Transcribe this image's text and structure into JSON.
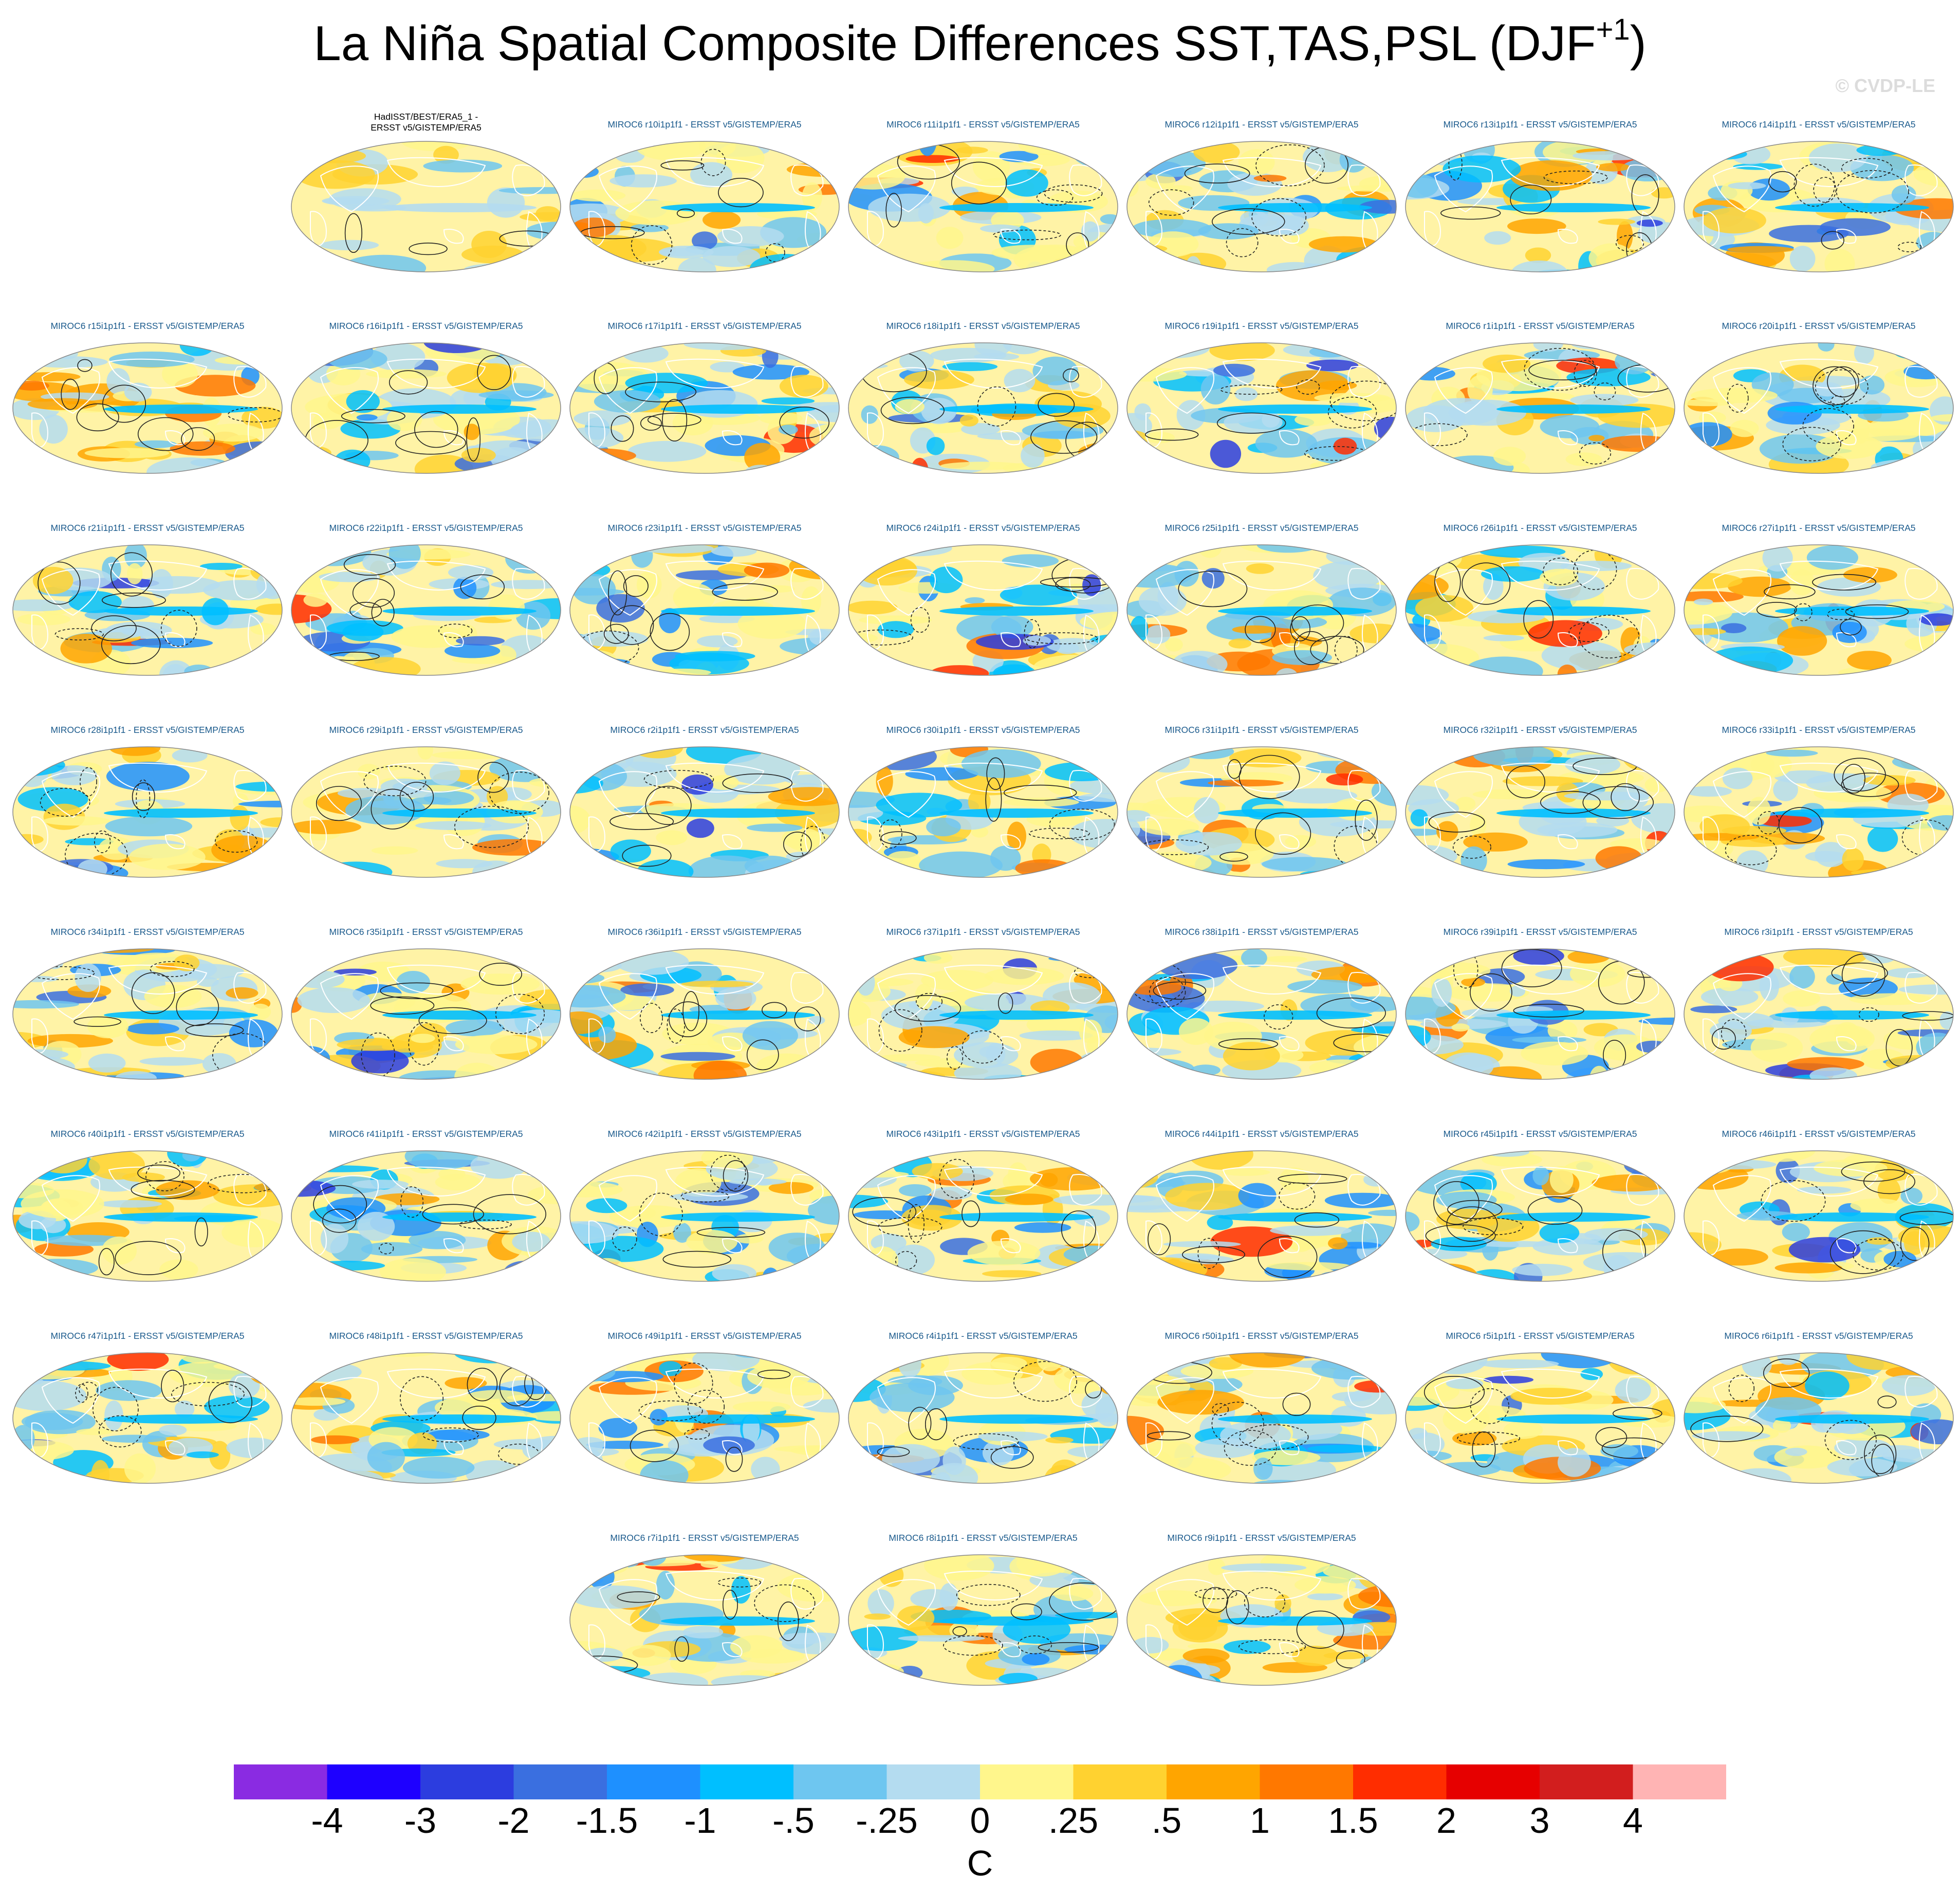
{
  "title": {
    "main": "La Niña Spatial Composite Differences SST,TAS,PSL (DJF",
    "superscript": "+1",
    "close": ")"
  },
  "copyright": "© CVDP-LE",
  "panels": [
    {
      "label": "HadISST/BEST/ERA5_1 -",
      "label2": "ERSST v5/GISTEMP/ERA5",
      "obs": true
    },
    {
      "label": "MIROC6 r10i1p1f1 - ERSST v5/GISTEMP/ERA5"
    },
    {
      "label": "MIROC6 r11i1p1f1 - ERSST v5/GISTEMP/ERA5"
    },
    {
      "label": "MIROC6 r12i1p1f1 - ERSST v5/GISTEMP/ERA5"
    },
    {
      "label": "MIROC6 r13i1p1f1 - ERSST v5/GISTEMP/ERA5"
    },
    {
      "label": "MIROC6 r14i1p1f1 - ERSST v5/GISTEMP/ERA5"
    },
    {
      "label": "MIROC6 r15i1p1f1 - ERSST v5/GISTEMP/ERA5"
    },
    {
      "label": "MIROC6 r16i1p1f1 - ERSST v5/GISTEMP/ERA5"
    },
    {
      "label": "MIROC6 r17i1p1f1 - ERSST v5/GISTEMP/ERA5"
    },
    {
      "label": "MIROC6 r18i1p1f1 - ERSST v5/GISTEMP/ERA5"
    },
    {
      "label": "MIROC6 r19i1p1f1 - ERSST v5/GISTEMP/ERA5"
    },
    {
      "label": "MIROC6 r1i1p1f1 - ERSST v5/GISTEMP/ERA5"
    },
    {
      "label": "MIROC6 r20i1p1f1 - ERSST v5/GISTEMP/ERA5"
    },
    {
      "label": "MIROC6 r21i1p1f1 - ERSST v5/GISTEMP/ERA5"
    },
    {
      "label": "MIROC6 r22i1p1f1 - ERSST v5/GISTEMP/ERA5"
    },
    {
      "label": "MIROC6 r23i1p1f1 - ERSST v5/GISTEMP/ERA5"
    },
    {
      "label": "MIROC6 r24i1p1f1 - ERSST v5/GISTEMP/ERA5"
    },
    {
      "label": "MIROC6 r25i1p1f1 - ERSST v5/GISTEMP/ERA5"
    },
    {
      "label": "MIROC6 r26i1p1f1 - ERSST v5/GISTEMP/ERA5"
    },
    {
      "label": "MIROC6 r27i1p1f1 - ERSST v5/GISTEMP/ERA5"
    },
    {
      "label": "MIROC6 r28i1p1f1 - ERSST v5/GISTEMP/ERA5"
    },
    {
      "label": "MIROC6 r29i1p1f1 - ERSST v5/GISTEMP/ERA5"
    },
    {
      "label": "MIROC6 r2i1p1f1 - ERSST v5/GISTEMP/ERA5"
    },
    {
      "label": "MIROC6 r30i1p1f1 - ERSST v5/GISTEMP/ERA5"
    },
    {
      "label": "MIROC6 r31i1p1f1 - ERSST v5/GISTEMP/ERA5"
    },
    {
      "label": "MIROC6 r32i1p1f1 - ERSST v5/GISTEMP/ERA5"
    },
    {
      "label": "MIROC6 r33i1p1f1 - ERSST v5/GISTEMP/ERA5"
    },
    {
      "label": "MIROC6 r34i1p1f1 - ERSST v5/GISTEMP/ERA5"
    },
    {
      "label": "MIROC6 r35i1p1f1 - ERSST v5/GISTEMP/ERA5"
    },
    {
      "label": "MIROC6 r36i1p1f1 - ERSST v5/GISTEMP/ERA5"
    },
    {
      "label": "MIROC6 r37i1p1f1 - ERSST v5/GISTEMP/ERA5"
    },
    {
      "label": "MIROC6 r38i1p1f1 - ERSST v5/GISTEMP/ERA5"
    },
    {
      "label": "MIROC6 r39i1p1f1 - ERSST v5/GISTEMP/ERA5"
    },
    {
      "label": "MIROC6 r3i1p1f1 - ERSST v5/GISTEMP/ERA5"
    },
    {
      "label": "MIROC6 r40i1p1f1 - ERSST v5/GISTEMP/ERA5"
    },
    {
      "label": "MIROC6 r41i1p1f1 - ERSST v5/GISTEMP/ERA5"
    },
    {
      "label": "MIROC6 r42i1p1f1 - ERSST v5/GISTEMP/ERA5"
    },
    {
      "label": "MIROC6 r43i1p1f1 - ERSST v5/GISTEMP/ERA5"
    },
    {
      "label": "MIROC6 r44i1p1f1 - ERSST v5/GISTEMP/ERA5"
    },
    {
      "label": "MIROC6 r45i1p1f1 - ERSST v5/GISTEMP/ERA5"
    },
    {
      "label": "MIROC6 r46i1p1f1 - ERSST v5/GISTEMP/ERA5"
    },
    {
      "label": "MIROC6 r47i1p1f1 - ERSST v5/GISTEMP/ERA5"
    },
    {
      "label": "MIROC6 r48i1p1f1 - ERSST v5/GISTEMP/ERA5"
    },
    {
      "label": "MIROC6 r49i1p1f1 - ERSST v5/GISTEMP/ERA5"
    },
    {
      "label": "MIROC6 r4i1p1f1 - ERSST v5/GISTEMP/ERA5"
    },
    {
      "label": "MIROC6 r50i1p1f1 - ERSST v5/GISTEMP/ERA5"
    },
    {
      "label": "MIROC6 r5i1p1f1 - ERSST v5/GISTEMP/ERA5"
    },
    {
      "label": "MIROC6 r6i1p1f1 - ERSST v5/GISTEMP/ERA5"
    },
    {
      "label": "MIROC6 r7i1p1f1 - ERSST v5/GISTEMP/ERA5"
    },
    {
      "label": "MIROC6 r8i1p1f1 - ERSST v5/GISTEMP/ERA5"
    },
    {
      "label": "MIROC6 r9i1p1f1 - ERSST v5/GISTEMP/ERA5"
    }
  ],
  "colorbar": {
    "colors": [
      "#8a2be2",
      "#1e00ff",
      "#2c3ddf",
      "#3a6fe0",
      "#1e90ff",
      "#00bfff",
      "#6ec6f0",
      "#b4dcf0",
      "#fff68c",
      "#ffd230",
      "#ffa500",
      "#ff7800",
      "#ff2d00",
      "#e60000",
      "#d21e1e",
      "#ffb4b4"
    ],
    "labels": [
      "-4",
      "-3",
      "-2",
      "-1.5",
      "-1",
      "-.5",
      "-.25",
      "0",
      ".25",
      ".5",
      "1",
      "1.5",
      "2",
      "3",
      "4"
    ],
    "units": "C"
  },
  "map_colors": {
    "ocean_neutral": "#fff3a6",
    "land_outline": "#ffffff",
    "contour": "#222222",
    "frame": "#888888"
  }
}
